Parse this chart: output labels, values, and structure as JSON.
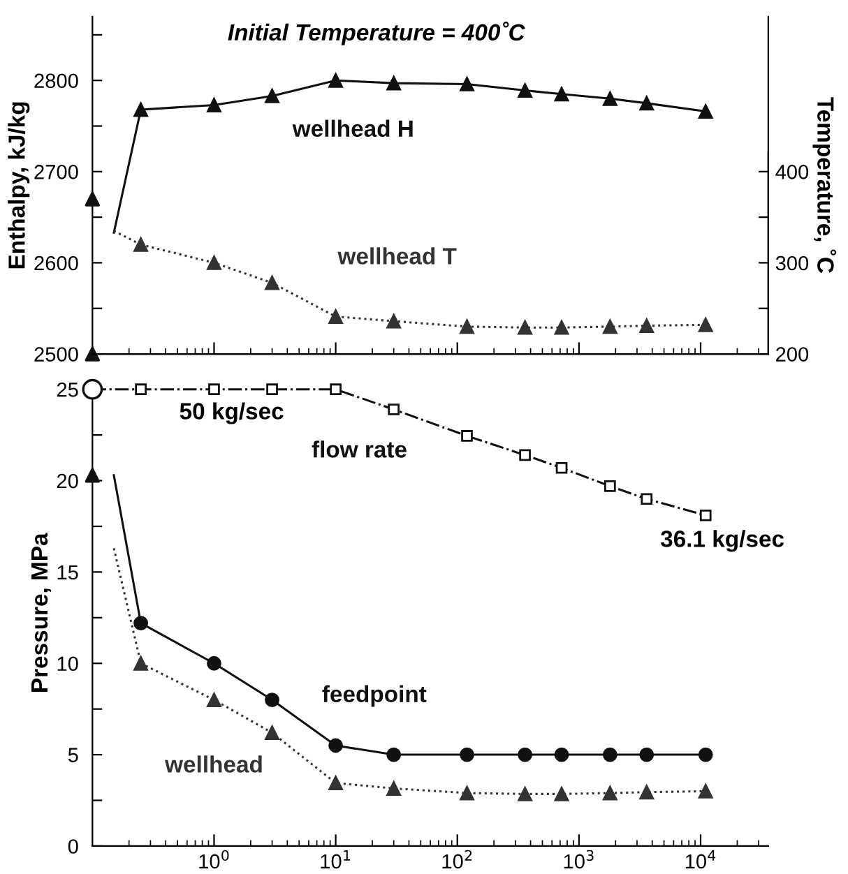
{
  "chart_data": [
    {
      "type": "line",
      "title": "Initial Temperature = 400˚C",
      "ylabel": "Enthalpy, kJ/kg",
      "y2label": "Temperature, ˚C",
      "xlim": [
        0.1,
        36000
      ],
      "ylim": [
        2500,
        2870
      ],
      "y2lim": [
        200,
        570
      ],
      "log": "x",
      "tick_labels": "y",
      "grid": false,
      "legend": false,
      "xticks": [
        {
          "value": 1,
          "label": null
        },
        {
          "value": 10,
          "label": null
        },
        {
          "value": 100,
          "label": null
        },
        {
          "value": 1000,
          "label": null
        },
        {
          "value": 10000,
          "label": null
        }
      ],
      "yticks": [
        2500,
        {
          "value": 2550,
          "label": null
        },
        2600,
        {
          "value": 2650,
          "label": null
        },
        2700,
        {
          "value": 2750,
          "label": null
        },
        2800,
        {
          "value": 2850,
          "label": null
        }
      ],
      "y2ticks": [
        200,
        {
          "value": 250,
          "label": null
        },
        300,
        {
          "value": 350,
          "label": null
        },
        400
      ],
      "series": [
        {
          "name": "wellhead H",
          "color": "#111111",
          "marker": "triangle",
          "line_style": "solid",
          "x": [
            0.25,
            1,
            3,
            10,
            30,
            120,
            360,
            720,
            1800,
            3600,
            11000
          ],
          "values": [
            2768,
            2773,
            2783,
            2800,
            2797,
            2796,
            2789,
            2785,
            2780,
            2775,
            2766
          ]
        },
        {
          "color": "#111111",
          "marker": "none",
          "line_style": "solid",
          "x": [
            0.15,
            0.25
          ],
          "values": [
            2633,
            2768
          ]
        },
        {
          "name": "wellhead T",
          "color": "#333333",
          "marker": "triangle",
          "line_style": "dotted",
          "axis": "y2",
          "x": [
            0.25,
            1,
            3,
            10,
            30,
            120,
            360,
            720,
            1800,
            3600,
            11000
          ],
          "values": [
            320,
            300,
            278,
            241,
            236,
            230,
            229,
            229,
            230,
            231,
            232
          ]
        },
        {
          "color": "#333333",
          "marker": "none",
          "line_style": "dotted",
          "axis": "y2",
          "x": [
            0.15,
            0.25
          ],
          "values": [
            335,
            320
          ]
        },
        {
          "type": "scatter",
          "color": "#111111",
          "marker": "triangle",
          "x": [
            0.1,
            0.1
          ],
          "values": [
            2670,
            2500
          ]
        }
      ]
    },
    {
      "type": "line",
      "ylabel": "Pressure, MPa",
      "xlim": [
        0.1,
        36000
      ],
      "ylim": [
        0,
        25.5
      ],
      "log": "x",
      "grid": false,
      "legend": false,
      "xticks": [
        {
          "value": 1,
          "label": "10$^{0}$"
        },
        {
          "value": 10,
          "label": "10$^{1}$"
        },
        {
          "value": 100,
          "label": "10$^{2}$"
        },
        {
          "value": 1000,
          "label": "10$^{3}$"
        },
        {
          "value": 10000,
          "label": "10$^{4}$"
        }
      ],
      "yticks": [
        0,
        {
          "value": 2.5,
          "label": null
        },
        5,
        {
          "value": 7.5,
          "label": null
        },
        10,
        {
          "value": 12.5,
          "label": null
        },
        15,
        {
          "value": 17.5,
          "label": null
        },
        20,
        {
          "value": 22.5,
          "label": null
        },
        25
      ],
      "series": [
        {
          "name": "flow rate",
          "color": "#111111",
          "marker": "square",
          "line_style": "dashdot",
          "x": [
            0.1,
            0.25,
            1,
            3,
            10,
            30,
            120,
            360,
            720,
            1800,
            3600,
            11000
          ],
          "values": [
            25,
            25,
            25,
            25,
            25,
            23.9,
            22.45,
            21.4,
            20.7,
            19.7,
            19.0,
            18.1
          ]
        },
        {
          "name": "feedpoint",
          "color": "#111111",
          "marker": "circle",
          "line_style": "solid",
          "x": [
            0.25,
            1,
            3,
            10,
            30,
            120,
            360,
            720,
            1800,
            3600,
            11000
          ],
          "values": [
            12.2,
            10.0,
            8.0,
            5.5,
            5.0,
            5.0,
            5.0,
            5.0,
            5.0,
            5.0,
            5.0
          ]
        },
        {
          "color": "#111111",
          "marker": "none",
          "line_style": "solid",
          "x": [
            0.15,
            0.25
          ],
          "values": [
            20.3,
            12.2
          ]
        },
        {
          "name": "wellhead",
          "color": "#333333",
          "marker": "triangle",
          "line_style": "dotted",
          "x": [
            0.25,
            1,
            3,
            10,
            30,
            120,
            360,
            720,
            1800,
            3600,
            11000
          ],
          "values": [
            10.0,
            8.0,
            6.2,
            3.45,
            3.15,
            2.9,
            2.85,
            2.85,
            2.9,
            2.95,
            3.0
          ]
        },
        {
          "color": "#333333",
          "marker": "none",
          "line_style": "dotted",
          "x": [
            0.15,
            0.25
          ],
          "values": [
            16.3,
            10.0
          ]
        },
        {
          "type": "scatter",
          "color": "#111111",
          "marker": "circle",
          "x": [
            0.1
          ],
          "values": [
            25
          ]
        },
        {
          "type": "scatter",
          "color": "#111111",
          "marker": "triangle",
          "x": [
            0.1
          ],
          "values": [
            20.3
          ]
        }
      ],
      "annotations": [
        "50 kg/sec",
        "36.1 kg/sec"
      ]
    }
  ]
}
